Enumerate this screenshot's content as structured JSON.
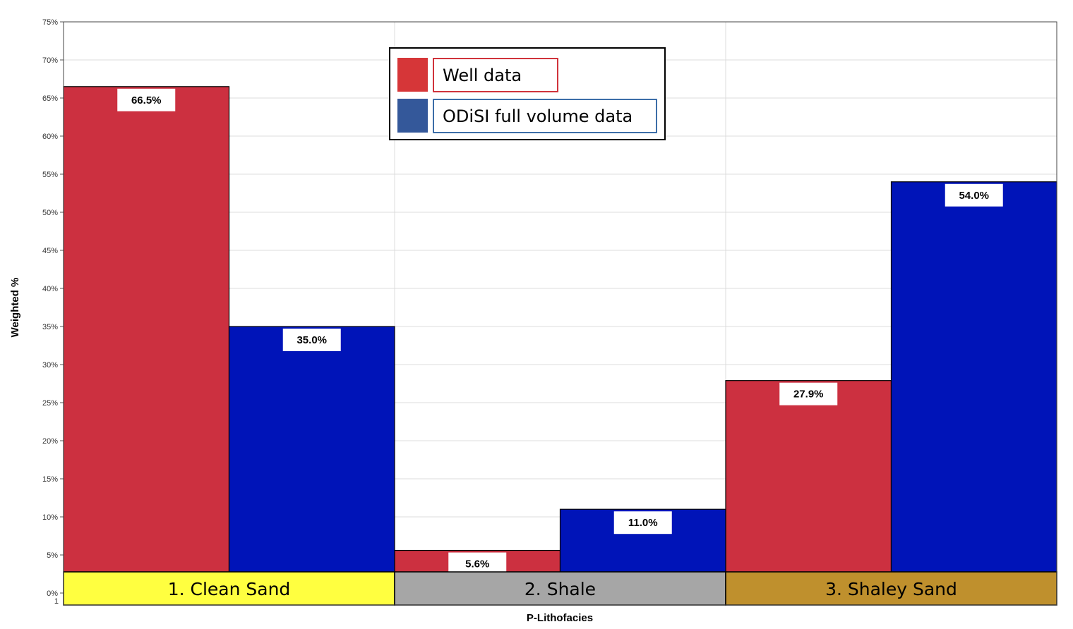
{
  "chart_data": {
    "type": "bar",
    "title": "",
    "xlabel": "P-Lithofacies",
    "ylabel": "Weighted %",
    "ylim": [
      0,
      75
    ],
    "y_ticks": [
      "0%",
      "5%",
      "10%",
      "15%",
      "20%",
      "25%",
      "30%",
      "35%",
      "40%",
      "45%",
      "50%",
      "55%",
      "60%",
      "65%",
      "70%",
      "75%"
    ],
    "x_tick_stub": "1",
    "grid": true,
    "legend_position": "top-center",
    "categories": [
      "1. Clean Sand",
      "2. Shale",
      "3. Shaley Sand"
    ],
    "category_colors": [
      "#ffff40",
      "#a6a6a6",
      "#bf902d"
    ],
    "series": [
      {
        "name": "Well data",
        "values": [
          66.5,
          5.6,
          27.9
        ],
        "labels": [
          "66.5%",
          "5.6%",
          "27.9%"
        ],
        "color": "#cc3040",
        "legend_swatch": "#d63638",
        "legend_border": "#d0333b"
      },
      {
        "name": "ODiSI full volume data",
        "values": [
          35.0,
          11.0,
          54.0
        ],
        "labels": [
          "35.0%",
          "11.0%",
          "54.0%"
        ],
        "color": "#0014b8",
        "legend_swatch": "#34589a",
        "legend_border": "#3c6ea8"
      }
    ]
  }
}
